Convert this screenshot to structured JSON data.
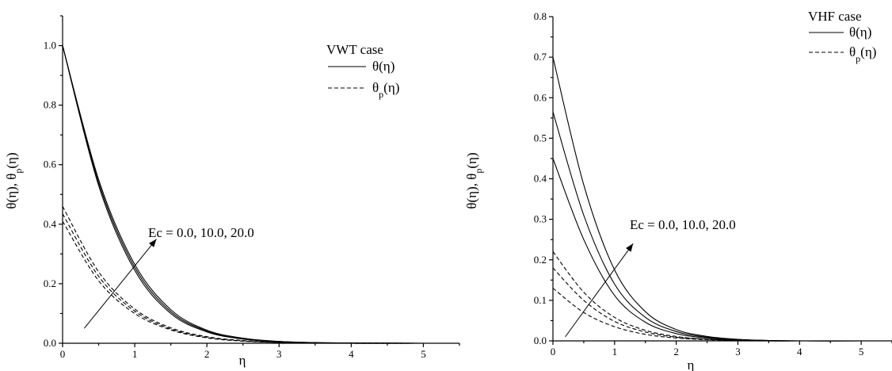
{
  "chart_data": [
    {
      "type": "line",
      "title": "",
      "xlabel": "η",
      "ylabel": "θ(η), θp(η)",
      "xlim": [
        0,
        5.5
      ],
      "ylim": [
        0,
        1.1
      ],
      "xticks": [
        "0",
        "1",
        "2",
        "3",
        "4",
        "5"
      ],
      "yticks": [
        "0.0",
        "0.2",
        "0.4",
        "0.6",
        "0.8",
        "1.0"
      ],
      "legend": {
        "placement": "top-right",
        "title": "VWT case",
        "entries": [
          {
            "style": "solid",
            "label": "θ(η)"
          },
          {
            "style": "dashed",
            "label": "θp(η)"
          }
        ]
      },
      "annotation": "Ec = 0.0, 10.0, 20.0",
      "arrow": {
        "from": [
          0.3,
          0.05
        ],
        "to": [
          1.3,
          0.35
        ]
      },
      "series": [
        {
          "style": "solid",
          "x": [
            0,
            0.5,
            1.0,
            1.5,
            2.0,
            2.5,
            3.0,
            3.5,
            4.0,
            5.0
          ],
          "values": [
            1.0,
            0.53,
            0.245,
            0.1,
            0.038,
            0.014,
            0.005,
            0.002,
            0.001,
            0.0
          ]
        },
        {
          "style": "solid",
          "x": [
            0,
            0.5,
            1.0,
            1.5,
            2.0,
            2.5,
            3.0,
            3.5,
            4.0,
            5.0
          ],
          "values": [
            1.0,
            0.54,
            0.255,
            0.106,
            0.041,
            0.015,
            0.006,
            0.002,
            0.001,
            0.0
          ]
        },
        {
          "style": "solid",
          "x": [
            0,
            0.5,
            1.0,
            1.5,
            2.0,
            2.5,
            3.0,
            3.5,
            4.0,
            5.0
          ],
          "values": [
            1.0,
            0.55,
            0.265,
            0.113,
            0.044,
            0.017,
            0.006,
            0.002,
            0.001,
            0.0
          ]
        },
        {
          "style": "dashed",
          "x": [
            0,
            0.5,
            1.0,
            1.5,
            2.0,
            2.5,
            3.0,
            3.5,
            4.0,
            5.0
          ],
          "values": [
            0.41,
            0.21,
            0.1,
            0.045,
            0.018,
            0.007,
            0.003,
            0.001,
            0.0,
            0.0
          ]
        },
        {
          "style": "dashed",
          "x": [
            0,
            0.5,
            1.0,
            1.5,
            2.0,
            2.5,
            3.0,
            3.5,
            4.0,
            5.0
          ],
          "values": [
            0.435,
            0.225,
            0.108,
            0.048,
            0.02,
            0.008,
            0.003,
            0.001,
            0.0,
            0.0
          ]
        },
        {
          "style": "dashed",
          "x": [
            0,
            0.5,
            1.0,
            1.5,
            2.0,
            2.5,
            3.0,
            3.5,
            4.0,
            5.0
          ],
          "values": [
            0.46,
            0.24,
            0.115,
            0.052,
            0.022,
            0.009,
            0.003,
            0.001,
            0.0,
            0.0
          ]
        }
      ]
    },
    {
      "type": "line",
      "title": "",
      "xlabel": "η",
      "ylabel": "θ(η), θp(η)",
      "xlim": [
        0,
        5.5
      ],
      "ylim": [
        0,
        0.8
      ],
      "xticks": [
        "0",
        "1",
        "2",
        "3",
        "4",
        "5"
      ],
      "yticks": [
        "0.0",
        "0.1",
        "0.2",
        "0.3",
        "0.4",
        "0.5",
        "0.6",
        "0.7",
        "0.8"
      ],
      "legend": {
        "placement": "top-right",
        "title": "VHF case",
        "entries": [
          {
            "style": "solid",
            "label": "θ(η)"
          },
          {
            "style": "dashed",
            "label": "θp(η)"
          }
        ]
      },
      "annotation": "Ec = 0.0, 10.0, 20.0",
      "arrow": {
        "from": [
          0.2,
          0.01
        ],
        "to": [
          1.3,
          0.24
        ]
      },
      "series": [
        {
          "style": "solid",
          "x": [
            0,
            0.5,
            1.0,
            1.5,
            2.0,
            2.5,
            3.0,
            3.5,
            4.0,
            5.0
          ],
          "values": [
            0.45,
            0.25,
            0.112,
            0.046,
            0.018,
            0.007,
            0.003,
            0.001,
            0.0,
            0.0
          ]
        },
        {
          "style": "solid",
          "x": [
            0,
            0.5,
            1.0,
            1.5,
            2.0,
            2.5,
            3.0,
            3.5,
            4.0,
            5.0
          ],
          "values": [
            0.565,
            0.31,
            0.14,
            0.058,
            0.023,
            0.009,
            0.003,
            0.001,
            0.0,
            0.0
          ]
        },
        {
          "style": "solid",
          "x": [
            0,
            0.5,
            1.0,
            1.5,
            2.0,
            2.5,
            3.0,
            3.5,
            4.0,
            5.0
          ],
          "values": [
            0.7,
            0.385,
            0.175,
            0.072,
            0.028,
            0.011,
            0.004,
            0.001,
            0.0,
            0.0
          ]
        },
        {
          "style": "dashed",
          "x": [
            0,
            0.5,
            1.0,
            1.5,
            2.0,
            2.5,
            3.0,
            3.5,
            4.0,
            5.0
          ],
          "values": [
            0.13,
            0.07,
            0.035,
            0.016,
            0.007,
            0.003,
            0.001,
            0.0,
            0.0,
            0.0
          ]
        },
        {
          "style": "dashed",
          "x": [
            0,
            0.5,
            1.0,
            1.5,
            2.0,
            2.5,
            3.0,
            3.5,
            4.0,
            5.0
          ],
          "values": [
            0.18,
            0.1,
            0.048,
            0.022,
            0.009,
            0.004,
            0.001,
            0.0,
            0.0,
            0.0
          ]
        },
        {
          "style": "dashed",
          "x": [
            0,
            0.5,
            1.0,
            1.5,
            2.0,
            2.5,
            3.0,
            3.5,
            4.0,
            5.0
          ],
          "values": [
            0.22,
            0.12,
            0.058,
            0.026,
            0.011,
            0.004,
            0.002,
            0.0,
            0.0,
            0.0
          ]
        }
      ]
    }
  ]
}
